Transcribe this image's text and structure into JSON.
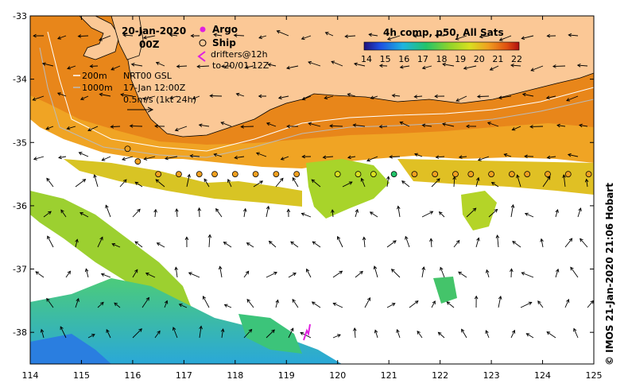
{
  "header": {
    "date": "20-Jan-2020",
    "time": "00Z",
    "product": "4h comp, p50, All Sats"
  },
  "legend": {
    "argo_label": "Argo",
    "ship_label": "Ship",
    "drifters_label": "drifters@12h",
    "drifters_sub": "to 20/01 12Z",
    "argo_color": "#e020e0",
    "drifter_color": "#e020e0"
  },
  "notes": {
    "contour_200": "200m",
    "contour_1000": "1000m",
    "current_source": "NRT00 GSL",
    "current_date": "17-Jan 12:00Z",
    "current_scale": "0.5m/s (1kt 24h)"
  },
  "colorbar": {
    "ticks": [
      "14",
      "15",
      "16",
      "17",
      "18",
      "19",
      "20",
      "21",
      "22"
    ],
    "min": 14,
    "max": 22
  },
  "axes": {
    "x_ticks": [
      "114",
      "115",
      "116",
      "117",
      "118",
      "119",
      "120",
      "121",
      "122",
      "123",
      "124",
      "125"
    ],
    "y_ticks": [
      "-33",
      "-34",
      "-35",
      "-36",
      "-37",
      "-38"
    ],
    "lon_range": [
      114,
      125
    ],
    "lat_range": [
      -38.5,
      -33
    ]
  },
  "ship_track": [
    {
      "lon": 115.9,
      "lat": -35.1,
      "sst": 20.0
    },
    {
      "lon": 116.1,
      "lat": -35.3,
      "sst": 20.5
    },
    {
      "lon": 116.5,
      "lat": -35.5,
      "sst": 20.3
    },
    {
      "lon": 116.9,
      "lat": -35.5,
      "sst": 20.4
    },
    {
      "lon": 117.3,
      "lat": -35.5,
      "sst": 20.5
    },
    {
      "lon": 117.6,
      "lat": -35.5,
      "sst": 20.6
    },
    {
      "lon": 118.0,
      "lat": -35.5,
      "sst": 20.6
    },
    {
      "lon": 118.4,
      "lat": -35.5,
      "sst": 20.4
    },
    {
      "lon": 118.8,
      "lat": -35.5,
      "sst": 20.5
    },
    {
      "lon": 119.2,
      "lat": -35.5,
      "sst": 20.6
    },
    {
      "lon": 120.0,
      "lat": -35.5,
      "sst": 19.8
    },
    {
      "lon": 120.4,
      "lat": -35.5,
      "sst": 19.5
    },
    {
      "lon": 120.7,
      "lat": -35.5,
      "sst": 19.2
    },
    {
      "lon": 121.1,
      "lat": -35.5,
      "sst": 17.5
    },
    {
      "lon": 121.5,
      "lat": -35.5,
      "sst": 20.3
    },
    {
      "lon": 121.9,
      "lat": -35.5,
      "sst": 20.4
    },
    {
      "lon": 122.3,
      "lat": -35.5,
      "sst": 20.5
    },
    {
      "lon": 122.6,
      "lat": -35.5,
      "sst": 20.5
    },
    {
      "lon": 123.0,
      "lat": -35.5,
      "sst": 20.6
    },
    {
      "lon": 123.4,
      "lat": -35.5,
      "sst": 20.6
    },
    {
      "lon": 123.7,
      "lat": -35.5,
      "sst": 20.5
    },
    {
      "lon": 124.1,
      "lat": -35.5,
      "sst": 20.7
    },
    {
      "lon": 124.5,
      "lat": -35.5,
      "sst": 20.7
    },
    {
      "lon": 124.9,
      "lat": -35.5,
      "sst": 20.7
    }
  ],
  "credit": "© IMOS 21-Jan-2020 21:06 Hobart"
}
